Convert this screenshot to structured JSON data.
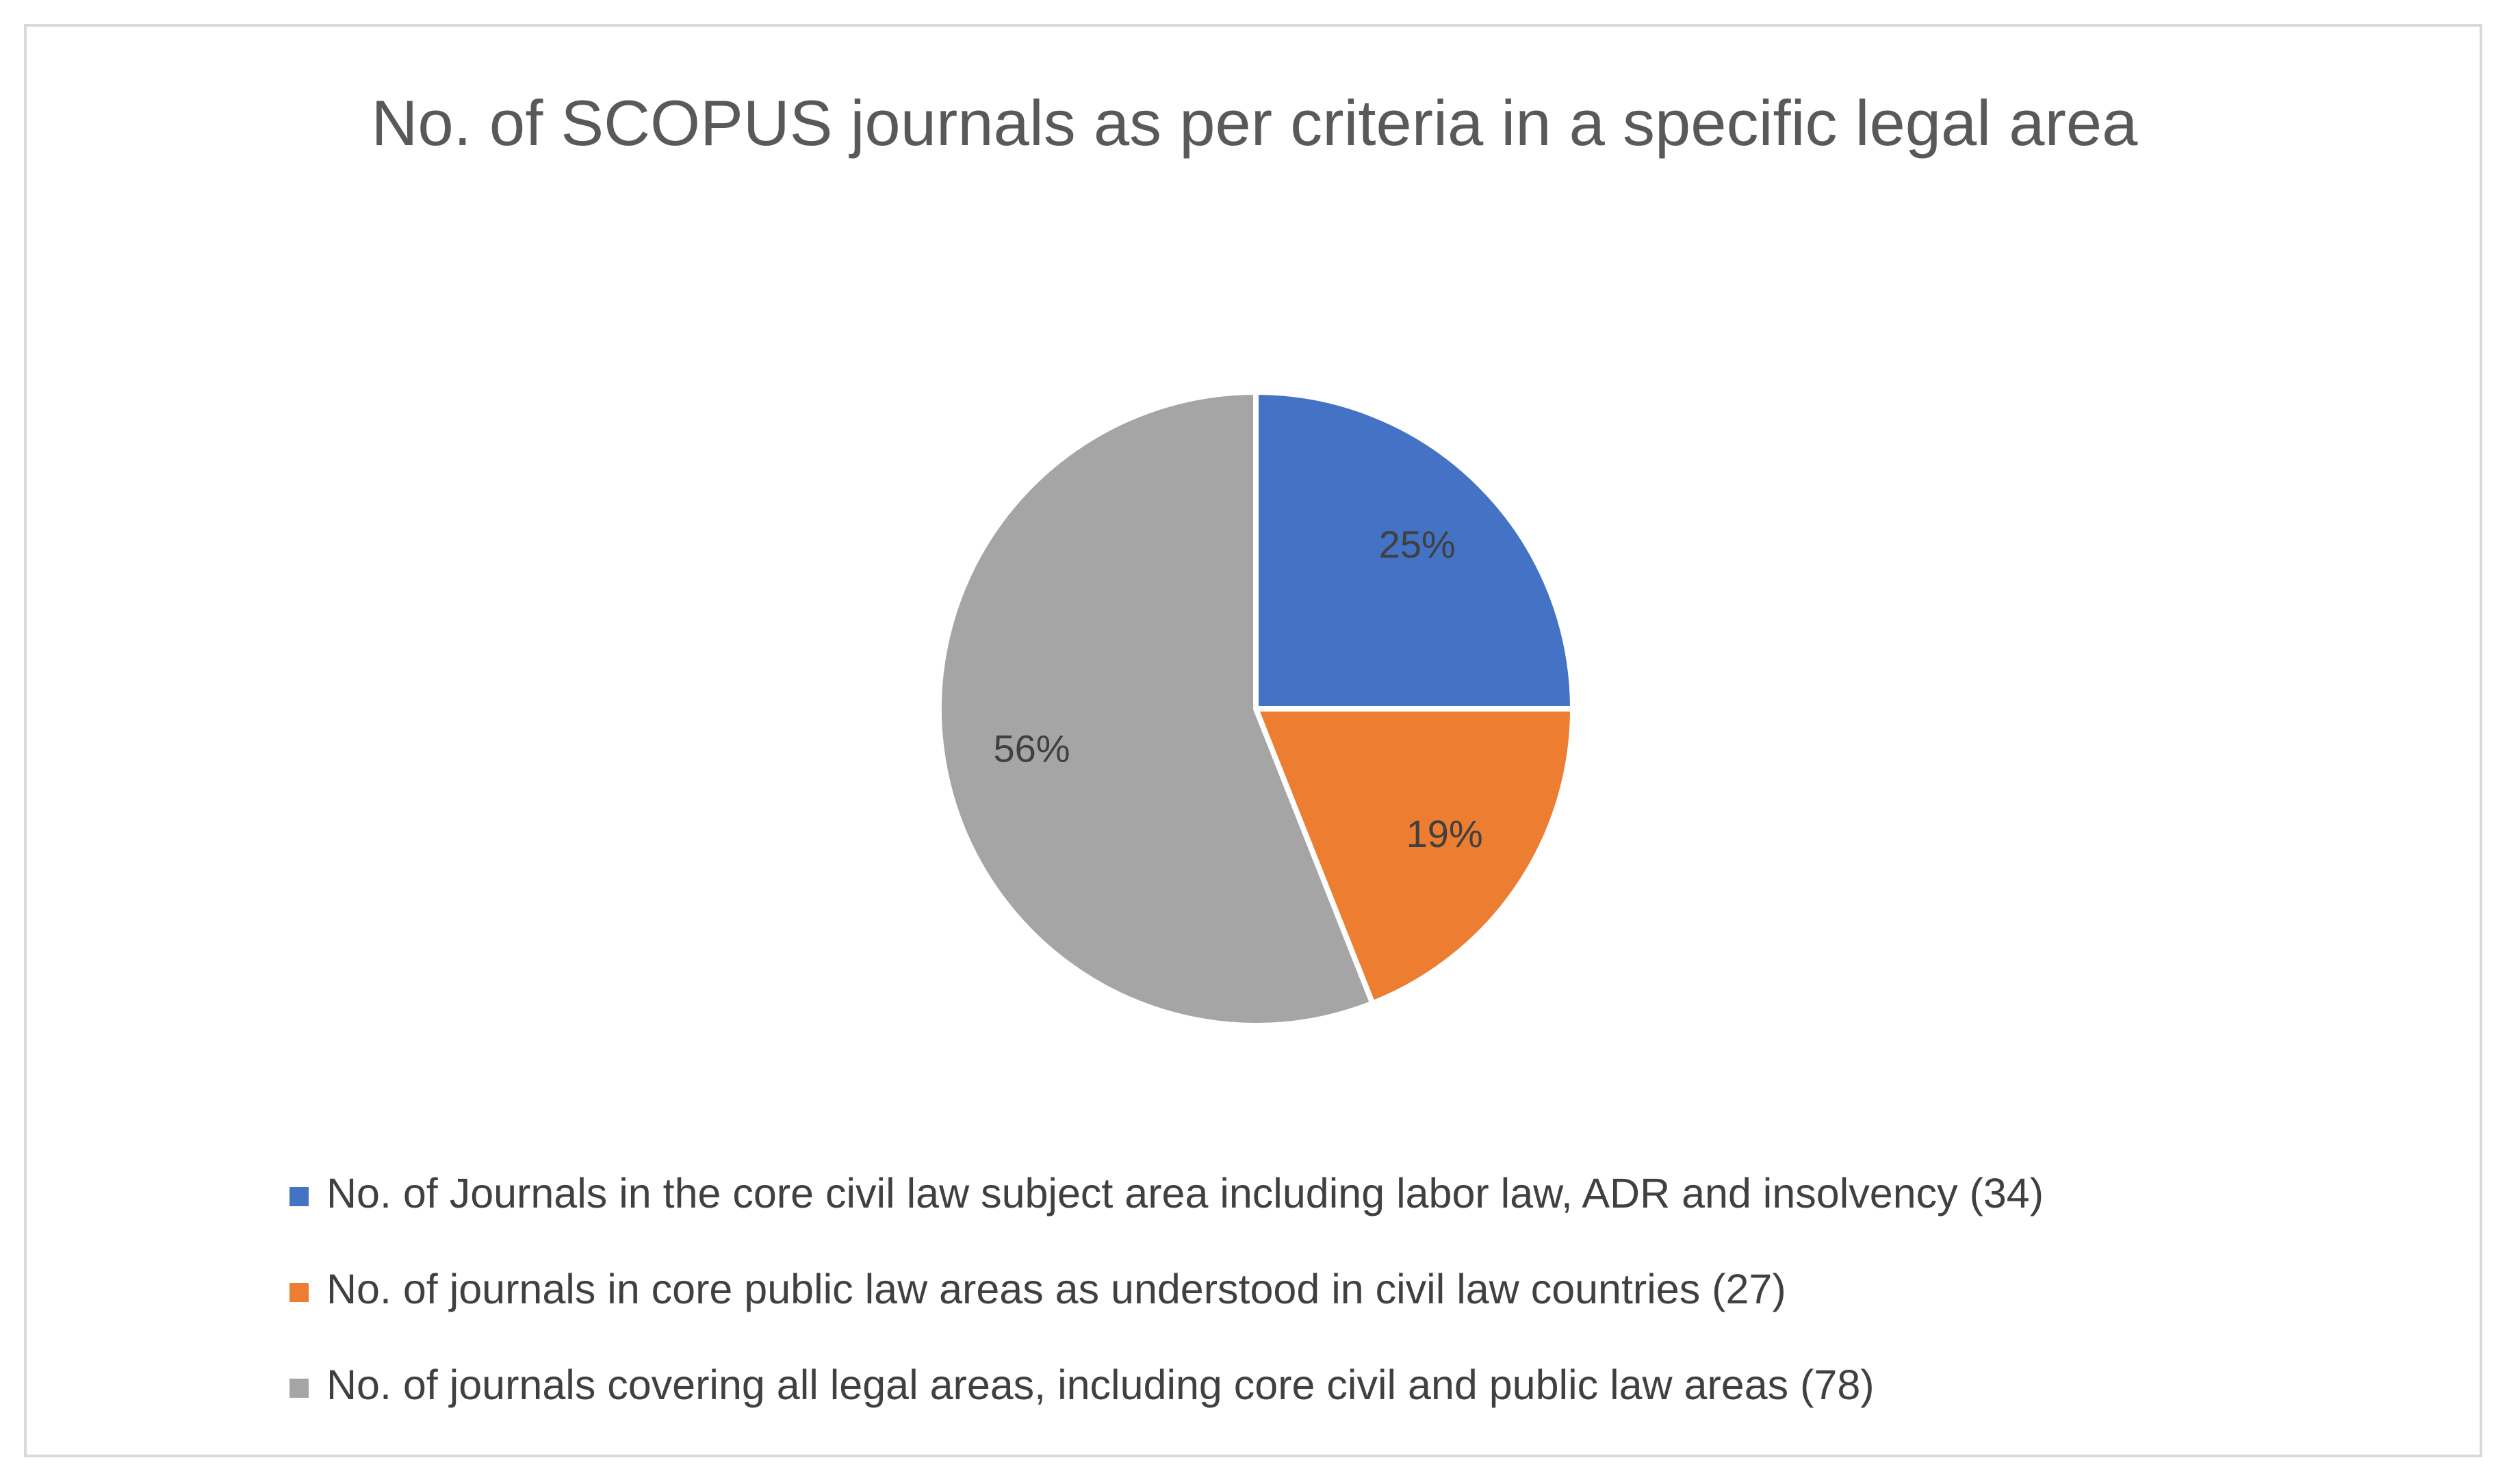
{
  "chart_data": {
    "type": "pie",
    "title": "No. of SCOPUS journals as per criteria in a specific legal area",
    "categories": [
      "No. of Journals in the core civil law subject area including labor law, ADR and insolvency (34)",
      "No. of journals in core public law areas as understood in civil law countries (27)",
      "No. of journals covering all legal areas, including core civil and public law areas (78)"
    ],
    "values": [
      25,
      19,
      56
    ],
    "value_labels": [
      "25%",
      "19%",
      "56%"
    ],
    "colors": [
      "#4472c4",
      "#ed7d31",
      "#a5a5a5"
    ],
    "legend": "bottom"
  }
}
